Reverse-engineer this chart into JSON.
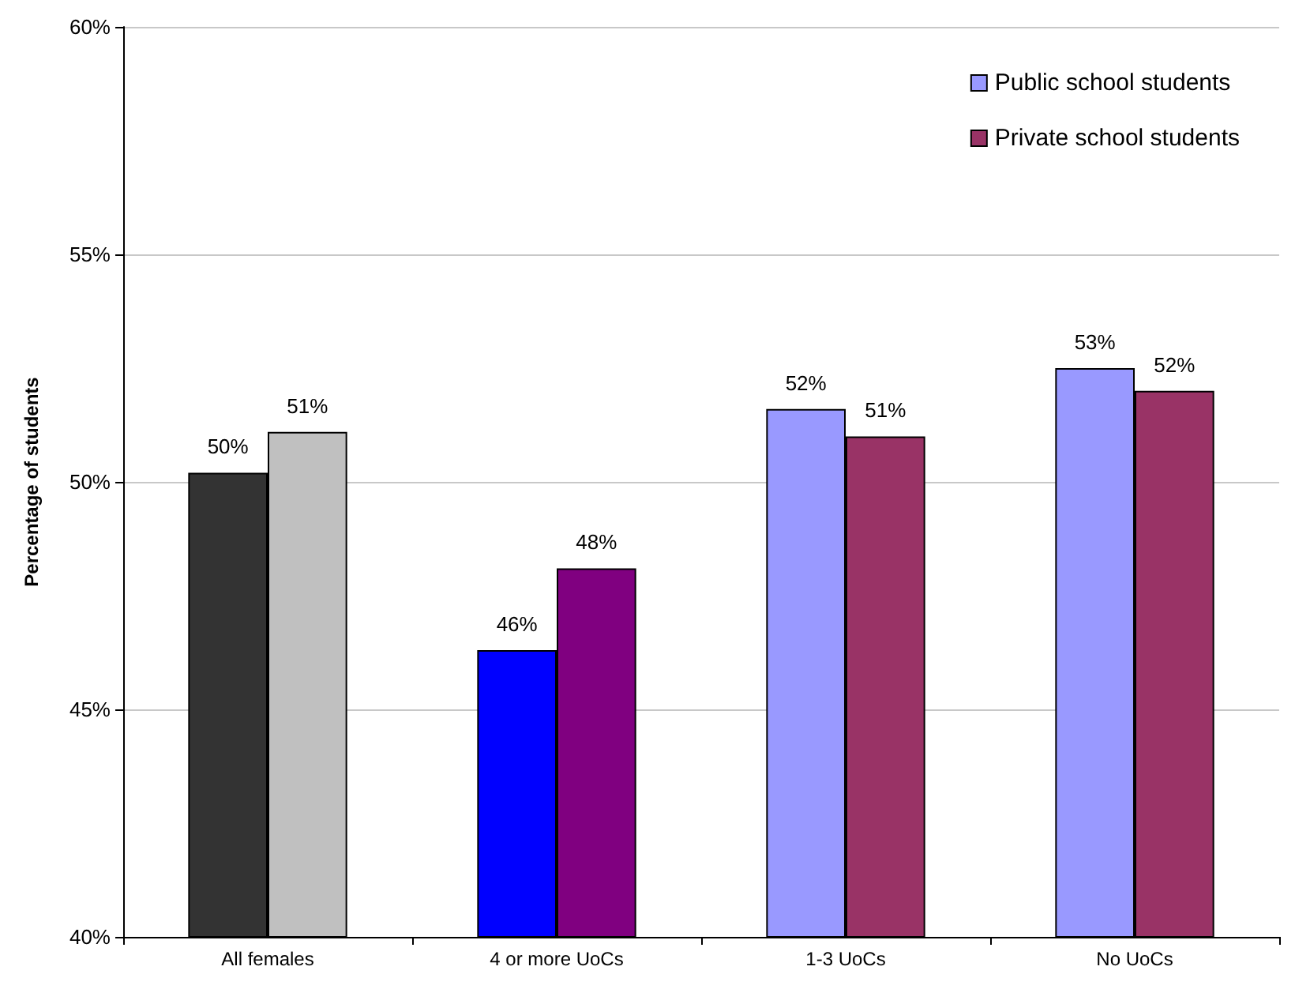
{
  "chart_data": {
    "type": "bar",
    "ylabel": "Percentage of students",
    "categories": [
      "All females",
      "4 or more UoCs",
      "1-3 UoCs",
      "No UoCs"
    ],
    "series": [
      {
        "name": "Public school students",
        "color": "#9999ff",
        "colors": [
          "#333333",
          "#0000ff",
          "#9999ff",
          "#9999ff"
        ],
        "values": [
          50.2,
          46.3,
          51.6,
          52.5
        ],
        "value_labels": [
          "50%",
          "46%",
          "52%",
          "53%"
        ]
      },
      {
        "name": "Private school students",
        "color": "#993366",
        "colors": [
          "#c0c0c0",
          "#800080",
          "#993366",
          "#993366"
        ],
        "values": [
          51.1,
          48.1,
          51.0,
          52.0
        ],
        "value_labels": [
          "51%",
          "48%",
          "51%",
          "52%"
        ]
      }
    ],
    "ylim": [
      40,
      60
    ],
    "yticks": [
      {
        "value": 40,
        "label": "40%"
      },
      {
        "value": 45,
        "label": "45%"
      },
      {
        "value": 50,
        "label": "50%"
      },
      {
        "value": 55,
        "label": "55%"
      },
      {
        "value": 60,
        "label": "60%"
      }
    ],
    "grid": "y",
    "legend": "top right"
  }
}
